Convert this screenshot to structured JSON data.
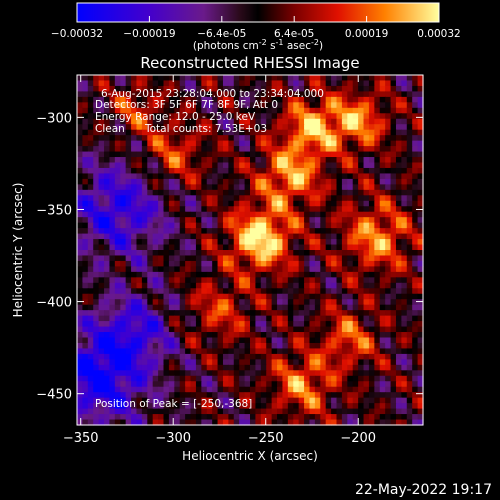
{
  "chart_data": {
    "type": "heatmap",
    "title": "Reconstructed RHESSI Image",
    "xlabel": "Heliocentric X (arcsec)",
    "ylabel": "Heliocentric Y (arcsec)",
    "xlim": [
      -352,
      -165
    ],
    "ylim": [
      -467,
      -277
    ],
    "xticks": [
      -350,
      -300,
      -250,
      -200
    ],
    "yticks": [
      -300,
      -350,
      -400,
      -450
    ],
    "colorbar": {
      "ticks": [
        "-0.00032",
        "-0.00019",
        "-6.4e-05",
        "6.4e-05",
        "0.00019",
        "0.00032"
      ],
      "unit_prefix": "(photons cm",
      "unit_exp1": "-2",
      "unit_mid": " s",
      "unit_exp2": "-1",
      "unit_mid2": " asec",
      "unit_exp3": "-2",
      "unit_suffix": ")",
      "min": -0.00032,
      "max": 0.00032
    },
    "annotations": {
      "line1": "6-Aug-2015 23:28:04.000 to 23:34:04.000",
      "line2": "Detectors: 3F 5F 6F 7F 8F 9F, Att 0",
      "line3": "Energy Range: 12.0 - 25.0 keV",
      "line4a": "Clean",
      "line4b": "Total counts: 7.53E+03",
      "peak_label": "Position of Peak = [-250,-368]"
    },
    "peak": [
      -250,
      -368
    ],
    "blobs": [
      {
        "x": -253,
        "y": -366,
        "amp": 1.0,
        "sigma": 12
      },
      {
        "x": -237,
        "y": -332,
        "amp": 0.75,
        "sigma": 12
      },
      {
        "x": -225,
        "y": -305,
        "amp": 0.75,
        "sigma": 11
      },
      {
        "x": -200,
        "y": -302,
        "amp": 0.7,
        "sigma": 11
      },
      {
        "x": -190,
        "y": -365,
        "amp": 0.7,
        "sigma": 13
      },
      {
        "x": -230,
        "y": -445,
        "amp": 0.65,
        "sigma": 12
      },
      {
        "x": -205,
        "y": -420,
        "amp": 0.55,
        "sigma": 11
      },
      {
        "x": -300,
        "y": -320,
        "amp": 0.5,
        "sigma": 12
      },
      {
        "x": -320,
        "y": -295,
        "amp": 0.45,
        "sigma": 9
      },
      {
        "x": -275,
        "y": -405,
        "amp": 0.45,
        "sigma": 12
      },
      {
        "x": -330,
        "y": -350,
        "amp": -0.75,
        "sigma": 18
      },
      {
        "x": -340,
        "y": -440,
        "amp": -0.95,
        "sigma": 18
      },
      {
        "x": -320,
        "y": -415,
        "amp": -0.55,
        "sigma": 14
      }
    ]
  },
  "footer": {
    "timestamp": "22-May-2022 19:17"
  }
}
